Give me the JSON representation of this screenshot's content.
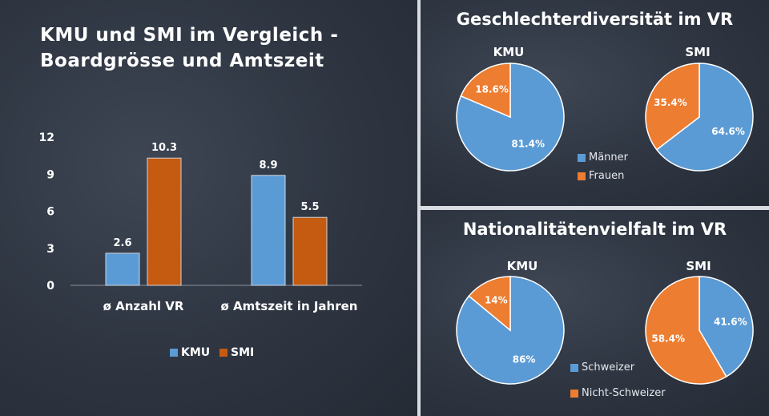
{
  "colors": {
    "blue": "#5b9bd5",
    "orange": "#c55a11",
    "orange_pie": "#ed7d31"
  },
  "bar_panel": {
    "title_line1": "KMU und SMI im Vergleich -",
    "title_line2": "Boardgrösse und Amtszeit",
    "legend": [
      "KMU",
      "SMI"
    ]
  },
  "gender_panel": {
    "title": "Geschlechterdiversität im VR",
    "left_label": "KMU",
    "right_label": "SMI",
    "legend": [
      "Männer",
      "Frauen"
    ]
  },
  "nationality_panel": {
    "title": "Nationalitätenvielfalt im VR",
    "left_label": "KMU",
    "right_label": "SMI",
    "legend": [
      "Schweizer",
      "Nicht-Schweizer"
    ]
  },
  "chart_data": [
    {
      "type": "bar",
      "title": "KMU und SMI im Vergleich - Boardgrösse und Amtszeit",
      "categories": [
        "ø Anzahl VR",
        "ø Amtszeit in Jahren"
      ],
      "series": [
        {
          "name": "KMU",
          "values": [
            2.6,
            8.9
          ],
          "color": "#5b9bd5"
        },
        {
          "name": "SMI",
          "values": [
            10.3,
            5.5
          ],
          "color": "#c55a11"
        }
      ],
      "ylim": [
        0,
        12
      ],
      "yticks": [
        0,
        3,
        6,
        9,
        12
      ],
      "data_labels": [
        "2.6",
        "8.9",
        "10.3",
        "5.5"
      ],
      "legend": "bottom"
    },
    {
      "type": "pie",
      "title": "Geschlechterdiversität im VR",
      "subtitle": "KMU",
      "labels": [
        "Männer",
        "Frauen"
      ],
      "values": [
        81.4,
        18.6
      ],
      "data_labels": [
        "81.4%",
        "18.6%"
      ]
    },
    {
      "type": "pie",
      "title": "Geschlechterdiversität im VR",
      "subtitle": "SMI",
      "labels": [
        "Männer",
        "Frauen"
      ],
      "values": [
        64.6,
        35.4
      ],
      "data_labels": [
        "64.6%",
        "35.4%"
      ]
    },
    {
      "type": "pie",
      "title": "Nationalitätenvielfalt im VR",
      "subtitle": "KMU",
      "labels": [
        "Schweizer",
        "Nicht-Schweizer"
      ],
      "values": [
        86,
        14
      ],
      "data_labels": [
        "86%",
        "14%"
      ]
    },
    {
      "type": "pie",
      "title": "Nationalitätenvielfalt im VR",
      "subtitle": "SMI",
      "labels": [
        "Schweizer",
        "Nicht-Schweizer"
      ],
      "values": [
        41.6,
        58.4
      ],
      "data_labels": [
        "41.6%",
        "58.4%"
      ]
    }
  ]
}
